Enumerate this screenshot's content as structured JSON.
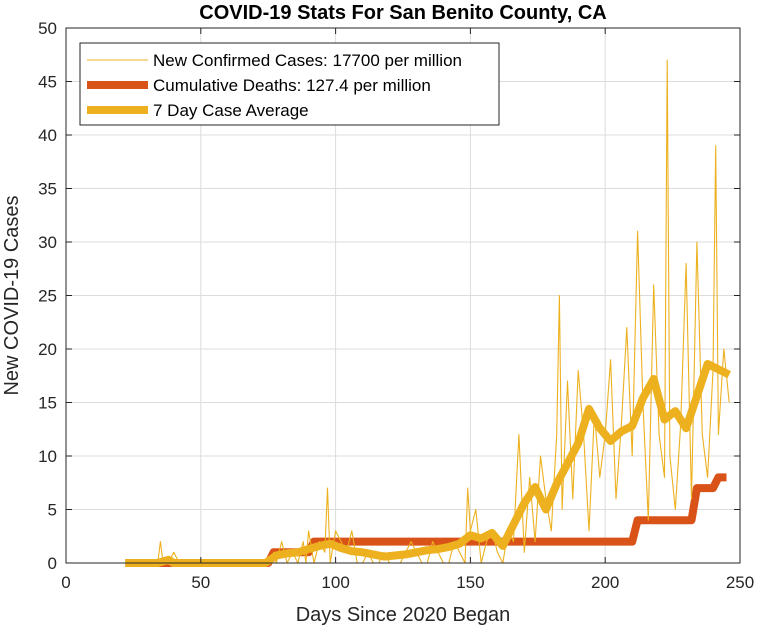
{
  "chart_data": {
    "type": "line",
    "title": "COVID-19 Stats For San Benito County, CA",
    "xlabel": "Days Since 2020 Began",
    "ylabel": "New COVID-19 Cases",
    "xlim": [
      0,
      250
    ],
    "ylim": [
      0,
      50
    ],
    "xticks": [
      0,
      50,
      100,
      150,
      200,
      250
    ],
    "yticks": [
      0,
      5,
      10,
      15,
      20,
      25,
      30,
      35,
      40,
      45,
      50
    ],
    "xtick_labels": [
      "0",
      "50",
      "100",
      "150",
      "200",
      "250"
    ],
    "ytick_labels": [
      "0",
      "5",
      "10",
      "15",
      "20",
      "25",
      "30",
      "35",
      "40",
      "45",
      "50"
    ],
    "grid": true,
    "legend_position": "top-left",
    "series": [
      {
        "name": "New Confirmed Cases: 17700 per million",
        "color": "#EDB120",
        "style": "thin",
        "x": [
          22,
          24,
          26,
          28,
          30,
          32,
          34,
          35,
          36,
          38,
          40,
          42,
          44,
          46,
          48,
          50,
          52,
          54,
          56,
          58,
          60,
          62,
          64,
          66,
          68,
          70,
          72,
          74,
          76,
          77,
          78,
          80,
          82,
          84,
          86,
          88,
          89,
          90,
          92,
          94,
          96,
          97,
          98,
          100,
          102,
          104,
          106,
          108,
          110,
          112,
          114,
          116,
          118,
          120,
          122,
          124,
          126,
          128,
          130,
          132,
          134,
          136,
          138,
          140,
          142,
          144,
          146,
          148,
          149,
          150,
          152,
          154,
          156,
          158,
          160,
          162,
          164,
          166,
          168,
          170,
          172,
          174,
          176,
          178,
          180,
          182,
          183,
          184,
          186,
          188,
          190,
          192,
          194,
          196,
          198,
          200,
          202,
          204,
          206,
          208,
          210,
          212,
          214,
          216,
          218,
          220,
          222,
          223,
          224,
          226,
          228,
          230,
          232,
          234,
          236,
          238,
          240,
          241,
          242,
          244,
          246
        ],
        "y": [
          0,
          0,
          0,
          0,
          0,
          0,
          0,
          2,
          0,
          0,
          1,
          0,
          0,
          0,
          0,
          0,
          0,
          0,
          0,
          0,
          0,
          0,
          0,
          0,
          0,
          0,
          0,
          0,
          0,
          1,
          0,
          2,
          0,
          1,
          0,
          2,
          0,
          3,
          0,
          2,
          1,
          7,
          0,
          3,
          2,
          1,
          3,
          0,
          0,
          1,
          0,
          0,
          1,
          0,
          0,
          0,
          1,
          2,
          1,
          0,
          0,
          2,
          1,
          0,
          0,
          2,
          1,
          0,
          7,
          3,
          5,
          0,
          2,
          3,
          1,
          0,
          3,
          2,
          12,
          1,
          8,
          2,
          10,
          6,
          3,
          12,
          25,
          5,
          17,
          6,
          18,
          12,
          3,
          14,
          8,
          12,
          19,
          6,
          13,
          22,
          10,
          31,
          15,
          4,
          26,
          12,
          8,
          47,
          10,
          5,
          13,
          28,
          6,
          30,
          12,
          8,
          18,
          39,
          12,
          20,
          15
        ]
      },
      {
        "name": "Cumulative Deaths: 127.4 per million",
        "color": "#D95319",
        "style": "thick",
        "x": [
          22,
          38,
          40,
          75,
          77,
          90,
          92,
          210,
          212,
          232,
          234,
          240,
          242,
          245
        ],
        "y": [
          0,
          0,
          0,
          0,
          1,
          1,
          2,
          2,
          4,
          4,
          7,
          7,
          8,
          8
        ]
      },
      {
        "name": "7 Day Case Average",
        "color": "#EDB120",
        "style": "thick",
        "x": [
          22,
          26,
          30,
          34,
          38,
          40,
          44,
          50,
          56,
          62,
          68,
          74,
          78,
          82,
          86,
          90,
          94,
          98,
          102,
          106,
          110,
          114,
          118,
          122,
          126,
          130,
          134,
          138,
          142,
          146,
          150,
          154,
          158,
          162,
          166,
          170,
          174,
          178,
          182,
          186,
          190,
          194,
          198,
          202,
          206,
          210,
          214,
          218,
          222,
          226,
          230,
          234,
          238,
          242,
          246
        ],
        "y": [
          0,
          0,
          0,
          0,
          0.3,
          0,
          0,
          0,
          0,
          0,
          0,
          0,
          0.7,
          0.9,
          1.0,
          1.3,
          1.6,
          1.8,
          1.4,
          1.1,
          1.0,
          0.8,
          0.6,
          0.7,
          0.8,
          1.0,
          1.2,
          1.3,
          1.5,
          1.8,
          2.6,
          2.3,
          2.8,
          1.6,
          3.6,
          5.6,
          7.1,
          5.0,
          7.4,
          9.3,
          11.2,
          14.4,
          12.6,
          11.4,
          12.3,
          12.8,
          15.4,
          17.2,
          13.4,
          14.2,
          12.6,
          15.6,
          18.6,
          18.1,
          17.6
        ]
      }
    ]
  }
}
